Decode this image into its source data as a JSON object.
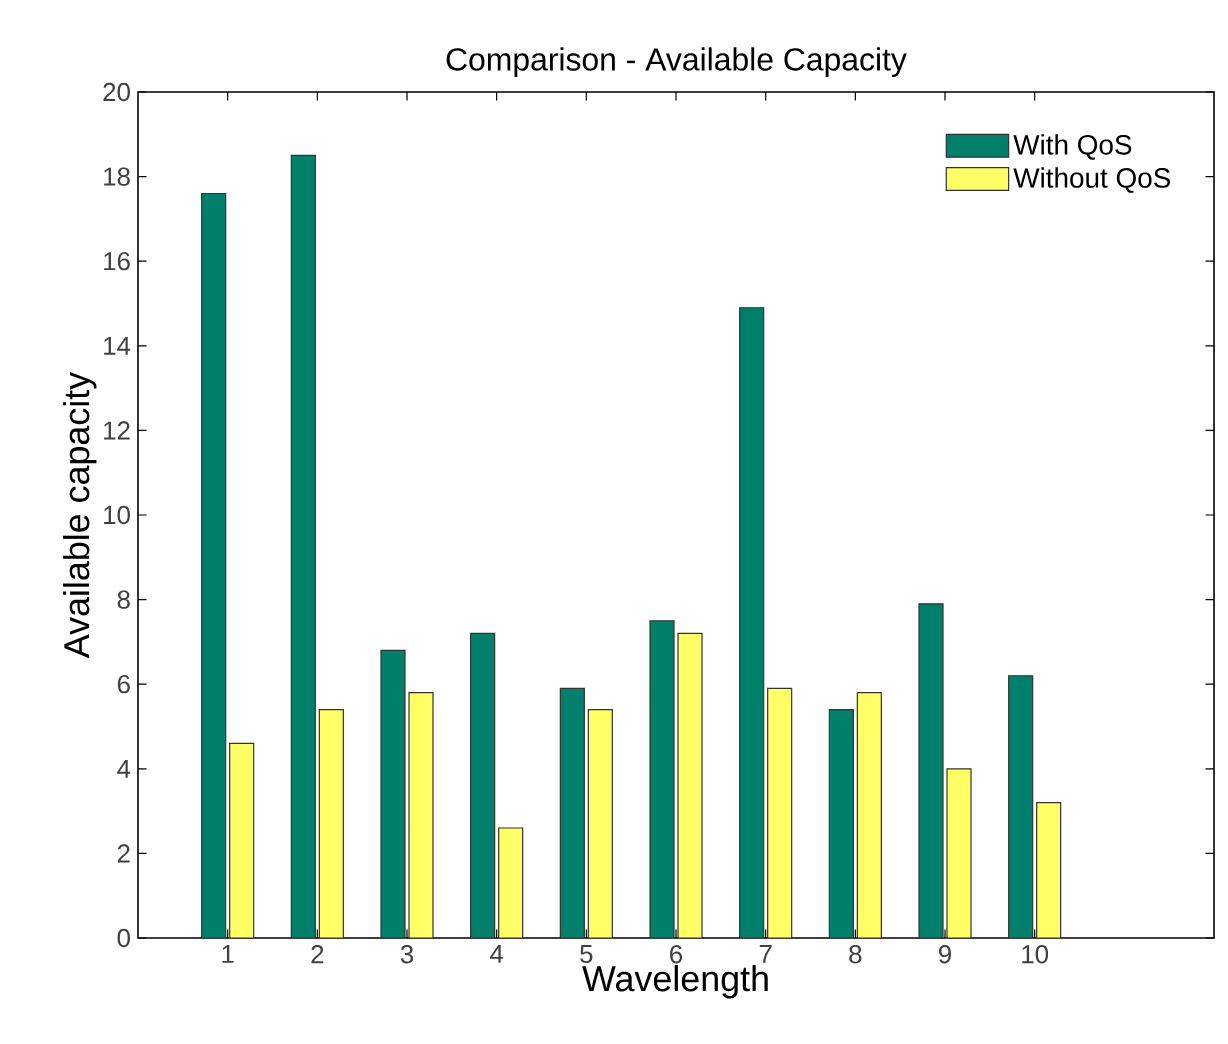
{
  "chart_data": {
    "type": "bar",
    "title": "Comparison - Available Capacity",
    "xlabel": "Wavelength",
    "ylabel": "Available capacity",
    "categories": [
      "1",
      "2",
      "3",
      "4",
      "5",
      "6",
      "7",
      "8",
      "9",
      "10"
    ],
    "series": [
      {
        "name": "With QoS",
        "color": "#00806a",
        "values": [
          17.6,
          18.5,
          6.8,
          7.2,
          5.9,
          7.5,
          14.9,
          5.4,
          7.9,
          6.2
        ]
      },
      {
        "name": "Without QoS",
        "color": "#ffff66",
        "values": [
          4.6,
          5.4,
          5.8,
          2.6,
          5.4,
          7.2,
          5.9,
          5.8,
          4.0,
          3.2
        ]
      }
    ],
    "ylim": [
      0,
      20
    ],
    "yticks": [
      0,
      2,
      4,
      6,
      8,
      10,
      12,
      14,
      16,
      18,
      20
    ],
    "legend": "top right"
  }
}
